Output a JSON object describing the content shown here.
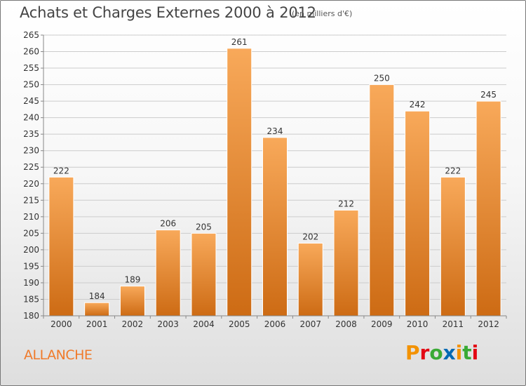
{
  "header": {
    "title": "Achats et Charges Externes 2000 à 2012",
    "unit": "(en milliers d'€)"
  },
  "place_name": "ALLANCHE",
  "logo": {
    "text": "Proxiti",
    "letters": [
      "P",
      "r",
      "o",
      "x",
      "i",
      "t",
      "i"
    ],
    "letter_colors": [
      "#f39200",
      "#e30613",
      "#3aaa35",
      "#0069b4",
      "#f39200",
      "#3aaa35",
      "#e30613"
    ]
  },
  "colors": {
    "bar_top": "#f8a95a",
    "bar_bottom": "#cd6b14",
    "grid": "#cccccc",
    "axis": "#888888"
  },
  "chart_data": {
    "type": "bar",
    "title": "Achats et Charges Externes 2000 à 2012",
    "subtitle": "(en milliers d'€)",
    "categories": [
      "2000",
      "2001",
      "2002",
      "2003",
      "2004",
      "2005",
      "2006",
      "2007",
      "2008",
      "2009",
      "2010",
      "2011",
      "2012"
    ],
    "values": [
      222,
      184,
      189,
      206,
      205,
      261,
      234,
      202,
      212,
      250,
      242,
      222,
      245
    ],
    "ylim": [
      180,
      265
    ],
    "yticks": [
      180,
      185,
      190,
      195,
      200,
      205,
      210,
      215,
      220,
      225,
      230,
      235,
      240,
      245,
      250,
      255,
      260,
      265
    ],
    "grid": true,
    "legend": false
  }
}
